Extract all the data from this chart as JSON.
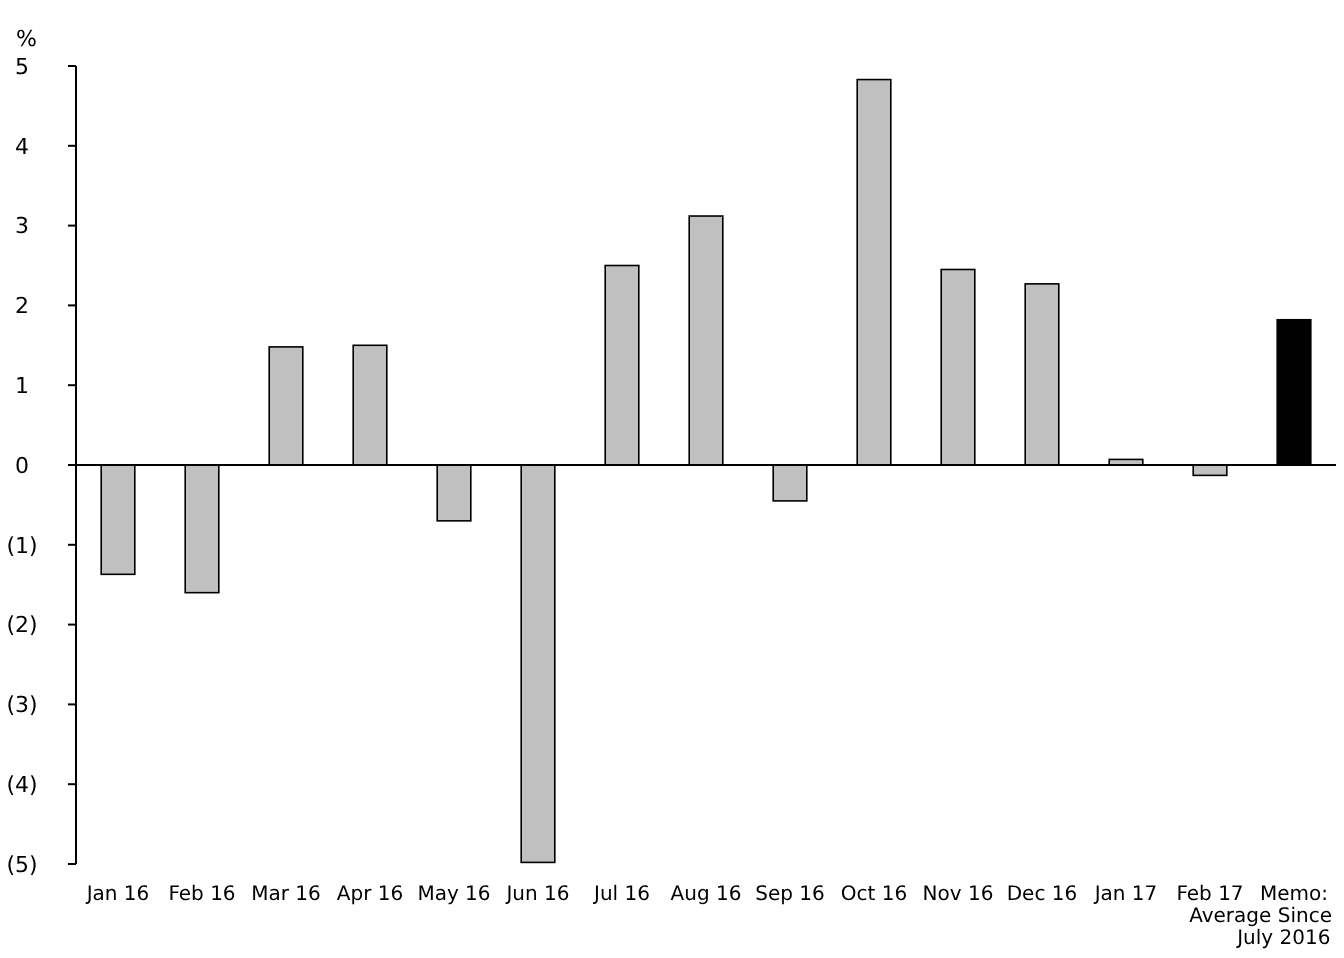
{
  "chart_data": {
    "type": "bar",
    "ylabel": "%",
    "categories": [
      "Jan 16",
      "Feb 16",
      "Mar 16",
      "Apr 16",
      "May 16",
      "Jun 16",
      "Jul 16",
      "Aug 16",
      "Sep 16",
      "Oct 16",
      "Nov 16",
      "Dec 16",
      "Jan 17",
      "Feb 17",
      "Memo:\nAverage Since\nJuly 2016"
    ],
    "values": [
      -1.37,
      -1.6,
      1.48,
      1.5,
      -0.7,
      -4.98,
      2.5,
      3.12,
      -0.45,
      4.83,
      2.45,
      2.27,
      0.07,
      -0.13,
      1.82
    ],
    "colors": [
      "#c0c0c0",
      "#c0c0c0",
      "#c0c0c0",
      "#c0c0c0",
      "#c0c0c0",
      "#c0c0c0",
      "#c0c0c0",
      "#c0c0c0",
      "#c0c0c0",
      "#c0c0c0",
      "#c0c0c0",
      "#c0c0c0",
      "#c0c0c0",
      "#c0c0c0",
      "#000000"
    ],
    "ylim": [
      -5,
      5
    ],
    "yticks": [
      {
        "value": -5,
        "label": "(5)"
      },
      {
        "value": -4,
        "label": "(4)"
      },
      {
        "value": -3,
        "label": "(3)"
      },
      {
        "value": -2,
        "label": "(2)"
      },
      {
        "value": -1,
        "label": "(1)"
      },
      0,
      1,
      2,
      3,
      4,
      5
    ],
    "orientation": "vertical"
  }
}
